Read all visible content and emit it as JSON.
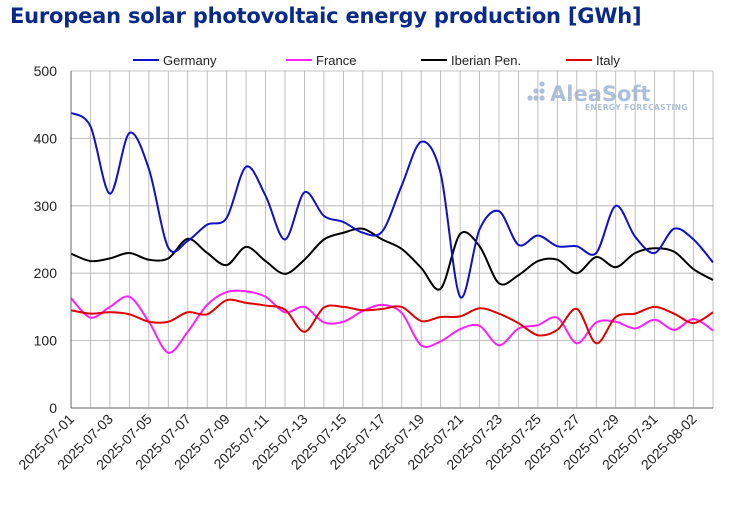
{
  "title": "European solar photovoltaic energy production [GWh]",
  "watermark": {
    "name": "AleaSoft",
    "tagline": "ENERGY FORECASTING"
  },
  "colors": {
    "germany": "#1010c8",
    "france": "#ff20ff",
    "iberian": "#000000",
    "italy": "#e00000",
    "grid": "#b0b0b0",
    "title": "#0a2a8a",
    "watermark": "#aebfd9"
  },
  "chart_data": {
    "type": "line",
    "title": "European solar photovoltaic energy production [GWh]",
    "xlabel": "",
    "ylabel": "",
    "ylim": [
      0,
      500
    ],
    "yticks": [
      0,
      100,
      200,
      300,
      400,
      500
    ],
    "grid": true,
    "legend_position": "top",
    "x": [
      "2025-07-01",
      "2025-07-02",
      "2025-07-03",
      "2025-07-04",
      "2025-07-05",
      "2025-07-06",
      "2025-07-07",
      "2025-07-08",
      "2025-07-09",
      "2025-07-10",
      "2025-07-11",
      "2025-07-12",
      "2025-07-13",
      "2025-07-14",
      "2025-07-15",
      "2025-07-16",
      "2025-07-17",
      "2025-07-18",
      "2025-07-19",
      "2025-07-20",
      "2025-07-21",
      "2025-07-22",
      "2025-07-23",
      "2025-07-24",
      "2025-07-25",
      "2025-07-26",
      "2025-07-27",
      "2025-07-28",
      "2025-07-29",
      "2025-07-30",
      "2025-07-31",
      "2025-08-01",
      "2025-08-02",
      "2025-08-03"
    ],
    "xtick_labels": [
      "2025-07-01",
      "2025-07-03",
      "2025-07-05",
      "2025-07-07",
      "2025-07-09",
      "2025-07-11",
      "2025-07-13",
      "2025-07-15",
      "2025-07-17",
      "2025-07-19",
      "2025-07-21",
      "2025-07-23",
      "2025-07-25",
      "2025-07-27",
      "2025-07-29",
      "2025-07-31",
      "2025-08-02"
    ],
    "series": [
      {
        "name": "Germany",
        "color": "#1010c8",
        "values": [
          438,
          418,
          318,
          408,
          355,
          238,
          248,
          272,
          282,
          358,
          315,
          250,
          320,
          285,
          276,
          260,
          262,
          330,
          395,
          348,
          165,
          265,
          292,
          242,
          256,
          240,
          240,
          230,
          300,
          254,
          230,
          266,
          250,
          216
        ]
      },
      {
        "name": "France",
        "color": "#ff20ff",
        "values": [
          163,
          134,
          150,
          165,
          128,
          82,
          113,
          153,
          172,
          173,
          165,
          142,
          150,
          127,
          128,
          144,
          153,
          141,
          93,
          99,
          117,
          122,
          93,
          118,
          123,
          134,
          96,
          127,
          128,
          118,
          131,
          116,
          132,
          115
        ]
      },
      {
        "name": "Iberian Pen.",
        "color": "#000000",
        "values": [
          229,
          218,
          222,
          230,
          220,
          222,
          251,
          230,
          212,
          239,
          218,
          199,
          220,
          250,
          260,
          266,
          250,
          236,
          208,
          177,
          258,
          240,
          185,
          197,
          218,
          220,
          200,
          224,
          209,
          230,
          237,
          232,
          206,
          190
        ]
      },
      {
        "name": "Italy",
        "color": "#e00000",
        "values": [
          145,
          140,
          142,
          139,
          128,
          128,
          142,
          139,
          160,
          156,
          152,
          146,
          113,
          149,
          150,
          145,
          147,
          150,
          129,
          135,
          136,
          148,
          140,
          126,
          108,
          116,
          147,
          96,
          135,
          140,
          150,
          140,
          126,
          142
        ]
      }
    ]
  }
}
